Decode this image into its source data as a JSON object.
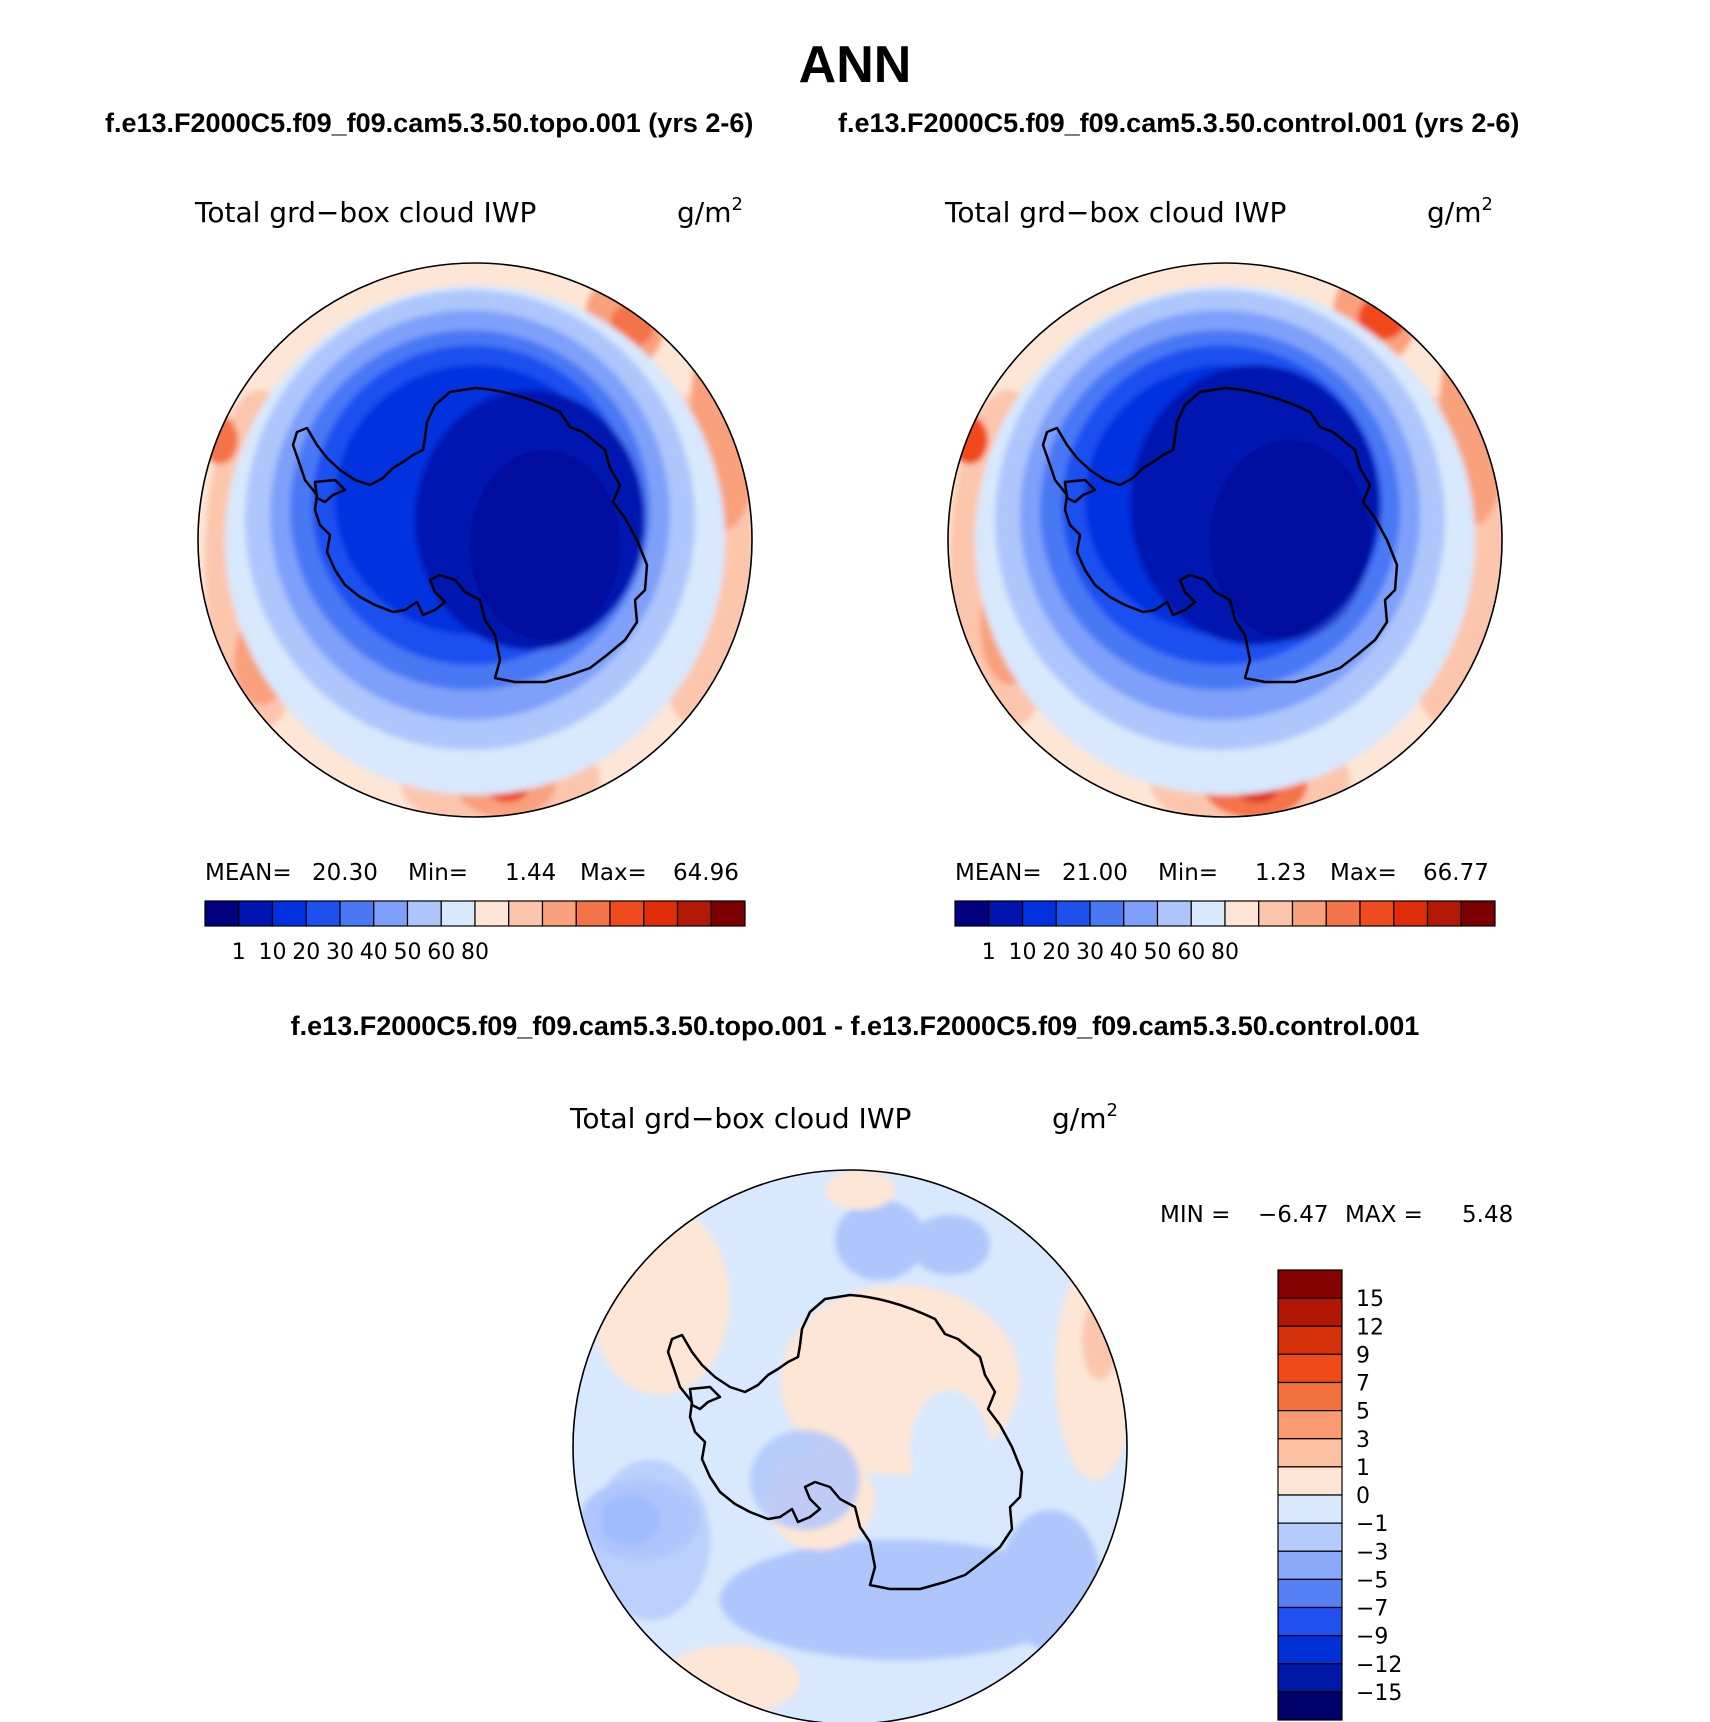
{
  "figure_title": "ANN",
  "colors": {
    "abs": [
      "#00007f",
      "#0015b0",
      "#0030e0",
      "#1e50f0",
      "#4a78f5",
      "#7ea0fa",
      "#aec6fc",
      "#d8e8fd",
      "#fde6d5",
      "#fcc6ad",
      "#f9a07d",
      "#f47348",
      "#f04a1f",
      "#df2d0a",
      "#b31705",
      "#7c0002"
    ],
    "diff": [
      "#00006a",
      "#0018a8",
      "#0030d8",
      "#2050f0",
      "#5580f5",
      "#88a8fa",
      "#b4cbfc",
      "#d8e8fd",
      "#fde6d5",
      "#fcc1a0",
      "#f99a70",
      "#f4703f",
      "#ef4a18",
      "#d5300a",
      "#b01805",
      "#850000"
    ]
  },
  "panels": [
    {
      "id": "topo",
      "case_title": "f.e13.F2000C5.f09_f09.cam5.3.50.topo.001 (yrs 2-6)",
      "variable": "Total grd−box cloud IWP",
      "units": "g/m",
      "units_exp": "2",
      "stats": {
        "mean_label": "MEAN=",
        "mean": "20.30",
        "min_label": "Min=",
        "min": "1.44",
        "max_label": "Max=",
        "max": "64.96"
      },
      "colorbar_ticks": [
        "1",
        "10",
        "20",
        "30",
        "40",
        "50",
        "60",
        "80"
      ]
    },
    {
      "id": "control",
      "case_title": "f.e13.F2000C5.f09_f09.cam5.3.50.control.001 (yrs 2-6)",
      "variable": "Total grd−box cloud IWP",
      "units": "g/m",
      "units_exp": "2",
      "stats": {
        "mean_label": "MEAN=",
        "mean": "21.00",
        "min_label": "Min=",
        "min": "1.23",
        "max_label": "Max=",
        "max": "66.77"
      },
      "colorbar_ticks": [
        "1",
        "10",
        "20",
        "30",
        "40",
        "50",
        "60",
        "80"
      ]
    }
  ],
  "difference": {
    "title": "f.e13.F2000C5.f09_f09.cam5.3.50.topo.001 - f.e13.F2000C5.f09_f09.cam5.3.50.control.001",
    "variable": "Total grd−box cloud IWP",
    "units": "g/m",
    "units_exp": "2",
    "stats": {
      "min_label": "MIN =",
      "min": "−6.47",
      "max_label": "MAX =",
      "max": "5.48"
    },
    "colorbar_ticks": [
      "15",
      "12",
      "9",
      "7",
      "5",
      "3",
      "1",
      "0",
      "−1",
      "−3",
      "−5",
      "−7",
      "−9",
      "−12",
      "−15"
    ]
  }
}
